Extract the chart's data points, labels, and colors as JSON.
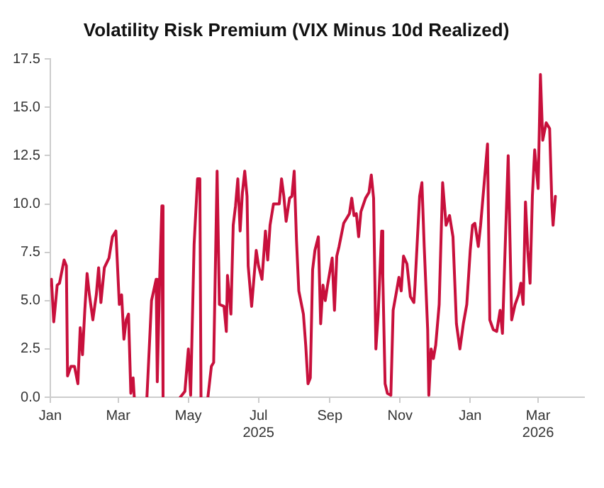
{
  "chart_data": {
    "type": "line",
    "title": "Volatility Risk Premium (VIX Minus 10d Realized)",
    "x": [
      "2025-01-01",
      "2025-01-02",
      "2025-01-04",
      "2025-01-05",
      "2025-01-07",
      "2025-01-09",
      "2025-01-13",
      "2025-01-15",
      "2025-01-16",
      "2025-01-19",
      "2025-01-22",
      "2025-01-25",
      "2025-01-27",
      "2025-01-29",
      "2025-01-31",
      "2025-02-02",
      "2025-02-04",
      "2025-02-07",
      "2025-02-10",
      "2025-02-12",
      "2025-02-14",
      "2025-02-17",
      "2025-02-21",
      "2025-02-24",
      "2025-02-27",
      "2025-03-02",
      "2025-03-04",
      "2025-03-06",
      "2025-03-08",
      "2025-03-10",
      "2025-03-12",
      "2025-03-14",
      "2025-03-15",
      "2025-03-17",
      "2025-03-26",
      "2025-03-30",
      "2025-04-03",
      "2025-04-04",
      "2025-04-06",
      "2025-04-08",
      "2025-04-09",
      "2025-04-11",
      "2025-04-24",
      "2025-04-28",
      "2025-05-01",
      "2025-05-03",
      "2025-05-06",
      "2025-05-09",
      "2025-05-11",
      "2025-05-12",
      "2025-05-14",
      "2025-05-18",
      "2025-05-21",
      "2025-05-23",
      "2025-05-26",
      "2025-05-28",
      "2025-06-01",
      "2025-06-03",
      "2025-06-04",
      "2025-06-07",
      "2025-06-09",
      "2025-06-11",
      "2025-06-13",
      "2025-06-15",
      "2025-06-17",
      "2025-06-19",
      "2025-06-21",
      "2025-06-22",
      "2025-06-25",
      "2025-06-29",
      "2025-07-01",
      "2025-07-04",
      "2025-07-07",
      "2025-07-09",
      "2025-07-11",
      "2025-07-14",
      "2025-07-19",
      "2025-07-21",
      "2025-07-23",
      "2025-07-25",
      "2025-07-28",
      "2025-07-30",
      "2025-08-01",
      "2025-08-03",
      "2025-08-05",
      "2025-08-09",
      "2025-08-11",
      "2025-08-13",
      "2025-08-15",
      "2025-08-17",
      "2025-08-19",
      "2025-08-22",
      "2025-08-24",
      "2025-08-26",
      "2025-08-28",
      "2025-08-30",
      "2025-09-03",
      "2025-09-05",
      "2025-09-07",
      "2025-09-09",
      "2025-09-13",
      "2025-09-18",
      "2025-09-20",
      "2025-09-22",
      "2025-09-24",
      "2025-09-26",
      "2025-09-28",
      "2025-10-02",
      "2025-10-05",
      "2025-10-07",
      "2025-10-09",
      "2025-10-11",
      "2025-10-13",
      "2025-10-16",
      "2025-10-17",
      "2025-10-19",
      "2025-10-21",
      "2025-10-24",
      "2025-10-26",
      "2025-10-29",
      "2025-10-31",
      "2025-11-02",
      "2025-11-04",
      "2025-11-07",
      "2025-11-10",
      "2025-11-13",
      "2025-11-14",
      "2025-11-18",
      "2025-11-20",
      "2025-11-22",
      "2025-11-25",
      "2025-11-26",
      "2025-11-28",
      "2025-11-30",
      "2025-12-02",
      "2025-12-05",
      "2025-12-08",
      "2025-12-11",
      "2025-12-14",
      "2025-12-17",
      "2025-12-20",
      "2025-12-23",
      "2025-12-26",
      "2025-12-29",
      "2026-01-01",
      "2026-01-03",
      "2026-01-05",
      "2026-01-08",
      "2026-01-10",
      "2026-01-12",
      "2026-01-16",
      "2026-01-18",
      "2026-01-21",
      "2026-01-24",
      "2026-01-27",
      "2026-01-29",
      "2026-01-31",
      "2026-02-03",
      "2026-02-06",
      "2026-02-09",
      "2026-02-12",
      "2026-02-14",
      "2026-02-16",
      "2026-02-18",
      "2026-02-20",
      "2026-02-22",
      "2026-02-24",
      "2026-02-26",
      "2026-03-01",
      "2026-03-03",
      "2026-03-05",
      "2026-03-08",
      "2026-03-11",
      "2026-03-13",
      "2026-03-14",
      "2026-03-16"
    ],
    "series": [
      {
        "color": "#c8103c",
        "values": [
          5.8,
          6.1,
          3.9,
          4.5,
          5.8,
          5.9,
          7.1,
          6.8,
          1.1,
          1.6,
          1.6,
          0.7,
          3.6,
          2.2,
          4.5,
          6.4,
          5.3,
          4.0,
          5.3,
          6.7,
          4.9,
          6.7,
          7.2,
          8.3,
          8.6,
          4.8,
          5.3,
          3.0,
          4.0,
          4.3,
          0.2,
          1.0,
          0,
          null,
          0,
          5.0,
          6.1,
          0.8,
          6.0,
          9.9,
          0,
          null,
          0,
          0.3,
          2.5,
          0.1,
          7.9,
          11.3,
          11.3,
          0,
          null,
          0,
          1.6,
          1.8,
          11.7,
          4.8,
          4.7,
          3.4,
          6.3,
          4.3,
          8.9,
          9.9,
          11.3,
          8.6,
          10.6,
          11.7,
          10.4,
          6.8,
          4.7,
          7.6,
          6.8,
          6.1,
          8.6,
          7.1,
          8.9,
          10.0,
          10.0,
          11.3,
          10.4,
          9.1,
          10.3,
          10.4,
          11.7,
          8.1,
          5.5,
          4.3,
          2.7,
          0.7,
          1.0,
          6.6,
          7.6,
          8.3,
          3.8,
          5.8,
          5.0,
          5.8,
          7.2,
          4.5,
          7.3,
          7.8,
          9.0,
          9.5,
          10.3,
          9.4,
          9.5,
          8.3,
          9.6,
          10.3,
          10.6,
          11.5,
          10.3,
          2.5,
          4.3,
          8.6,
          6.3,
          0.7,
          0.2,
          0.1,
          4.5,
          5.5,
          6.2,
          5.5,
          7.3,
          6.9,
          5.2,
          4.9,
          5.8,
          10.4,
          11.1,
          7.8,
          3.5,
          0.1,
          2.5,
          2.0,
          2.7,
          4.8,
          11.1,
          8.9,
          9.4,
          8.3,
          3.8,
          2.5,
          3.8,
          4.8,
          7.6,
          8.9,
          9.0,
          7.8,
          8.9,
          10.3,
          13.1,
          4.0,
          3.5,
          3.4,
          4.5,
          3.3,
          7.1,
          12.5,
          4.0,
          4.8,
          5.3,
          5.9,
          4.8,
          10.1,
          7.6,
          5.9,
          10.4,
          12.8,
          10.8,
          16.7,
          13.3,
          14.2,
          13.9,
          9.9,
          8.9,
          10.4
        ]
      }
    ],
    "xlim": [
      "2025-01-01",
      "2026-04-10"
    ],
    "xticks": [
      {
        "value": "2025-01-01",
        "label": "Jan"
      },
      {
        "value": "2025-03-01",
        "label": "Mar"
      },
      {
        "value": "2025-05-01",
        "label": "May"
      },
      {
        "value": "2025-07-01",
        "label": "Jul\n2025"
      },
      {
        "value": "2025-09-01",
        "label": "Sep"
      },
      {
        "value": "2025-11-01",
        "label": "Nov"
      },
      {
        "value": "2026-01-01",
        "label": "Jan"
      },
      {
        "value": "2026-03-01",
        "label": "Mar\n2026"
      }
    ],
    "ylim": [
      0,
      17.5
    ],
    "yticks": [
      {
        "value": 0,
        "label": "0.0"
      },
      {
        "value": 2.5,
        "label": "2.5"
      },
      {
        "value": 5,
        "label": "5.0"
      },
      {
        "value": 7.5,
        "label": "7.5"
      },
      {
        "value": 10,
        "label": "10.0"
      },
      {
        "value": 12.5,
        "label": "12.5"
      },
      {
        "value": 15,
        "label": "15.0"
      },
      {
        "value": 17.5,
        "label": "17.5"
      }
    ],
    "grid": false,
    "legend": false
  }
}
